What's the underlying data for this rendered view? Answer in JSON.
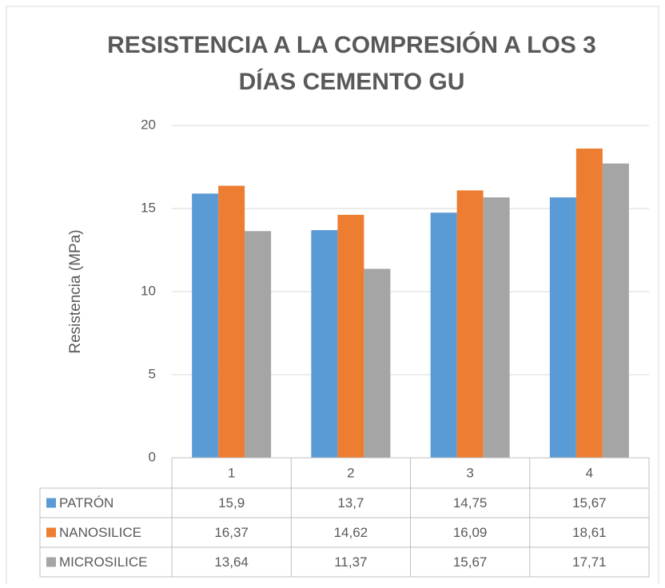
{
  "chart_data": {
    "type": "bar",
    "title": [
      "RESISTENCIA A LA COMPRESIÓN A LOS 3",
      "DÍAS CEMENTO GU"
    ],
    "y_label": "Resistencia (MPa)",
    "categories": [
      "1",
      "2",
      "3",
      "4"
    ],
    "series": [
      {
        "name": "PATRÓN",
        "color": "#5b9bd5",
        "values": [
          15.9,
          13.7,
          14.75,
          15.67
        ],
        "value_labels": [
          "15,9",
          "13,7",
          "14,75",
          "15,67"
        ]
      },
      {
        "name": "NANOSILICE",
        "color": "#ed7d31",
        "values": [
          16.37,
          14.62,
          16.09,
          18.61
        ],
        "value_labels": [
          "16,37",
          "14,62",
          "16,09",
          "18,61"
        ]
      },
      {
        "name": "MICROSILICE",
        "color": "#a5a5a5",
        "values": [
          13.64,
          11.37,
          15.67,
          17.71
        ],
        "value_labels": [
          "13,64",
          "11,37",
          "15,67",
          "17,71"
        ]
      }
    ],
    "ylim": [
      0,
      20
    ],
    "yticks": [
      0,
      5,
      10,
      15,
      20
    ],
    "grid": true,
    "data_table": true
  }
}
